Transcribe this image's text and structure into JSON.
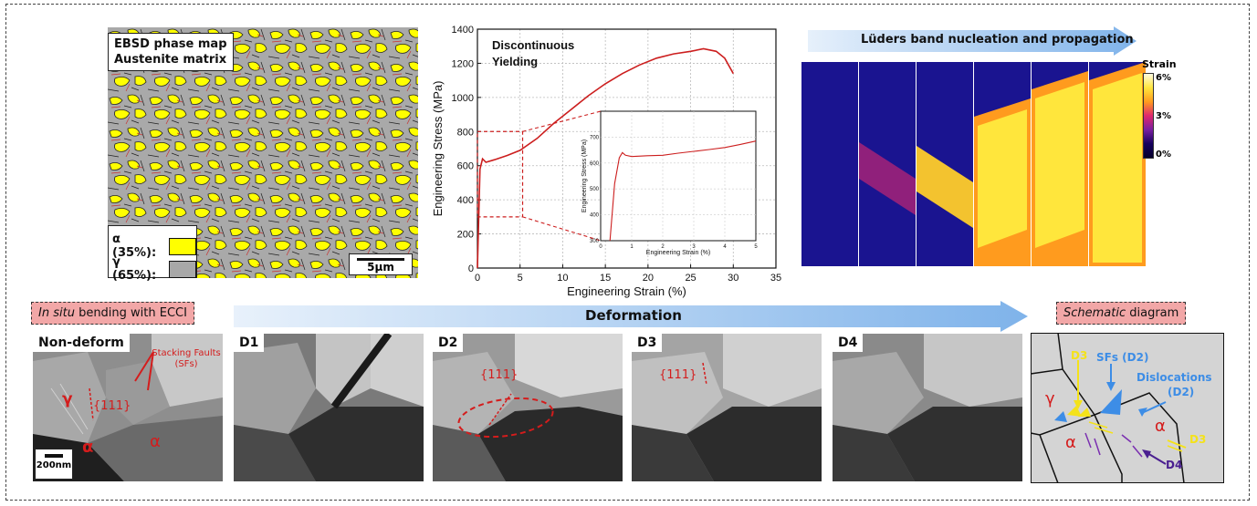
{
  "ebsd": {
    "title_line1": "EBSD phase map",
    "title_line2": "Austenite matrix",
    "legend": [
      {
        "label": "α (35%):",
        "color": "#ffff00"
      },
      {
        "label": "γ (65%):",
        "color": "#a8a8a8"
      }
    ],
    "scale_bar": "5μm"
  },
  "chart_data": [
    {
      "type": "line",
      "title": "Discontinuous Yielding",
      "xlabel": "Engineering Strain (%)",
      "ylabel": "Engineering Stress (MPa)",
      "xlim": [
        0,
        35
      ],
      "ylim": [
        0,
        1400
      ],
      "xticks": [
        0,
        5,
        10,
        15,
        20,
        25,
        30,
        35
      ],
      "yticks": [
        0,
        200,
        400,
        600,
        800,
        1000,
        1200,
        1400
      ],
      "x": [
        0,
        0.3,
        0.6,
        1.0,
        2.0,
        3.5,
        5.0,
        7.0,
        9.0,
        11.0,
        13.0,
        15.0,
        17.0,
        19.0,
        21.0,
        23.0,
        25.0,
        26.5,
        28.0,
        29.0,
        30.0
      ],
      "y": [
        0,
        580,
        640,
        620,
        635,
        660,
        690,
        760,
        850,
        930,
        1010,
        1080,
        1140,
        1190,
        1230,
        1255,
        1270,
        1285,
        1270,
        1230,
        1140
      ],
      "color": "#cc1e1e",
      "zoom_region": {
        "x": [
          0,
          5.3
        ],
        "y": [
          300,
          800
        ]
      }
    },
    {
      "type": "line",
      "title": "",
      "xlabel": "Engineering Strain (%)",
      "ylabel": "Engineering Stress (MPa)",
      "xlim": [
        0,
        5
      ],
      "ylim": [
        300,
        800
      ],
      "xticks": [
        0,
        1,
        2,
        3,
        4,
        5
      ],
      "yticks": [
        300,
        400,
        500,
        600,
        700
      ],
      "x": [
        0.3,
        0.45,
        0.6,
        0.7,
        0.8,
        1.0,
        1.5,
        2.0,
        2.5,
        3.0,
        3.5,
        4.0,
        4.5,
        5.0
      ],
      "y": [
        300,
        520,
        620,
        640,
        630,
        625,
        628,
        630,
        638,
        645,
        652,
        660,
        672,
        685
      ],
      "color": "#cc1e1e"
    }
  ],
  "dic": {
    "title": "Lüders band nucleation and propagation",
    "colorbar_label": "Strain",
    "colorbar_ticks": [
      "6%",
      "3%",
      "0%"
    ]
  },
  "ecci": {
    "tag_left_italic": "In situ",
    "tag_left_rest": " bending with ECCI",
    "deformation": "Deformation",
    "tag_right_italic": "Schematic",
    "tag_right_rest": " diagram",
    "panels": [
      "Non-deform",
      "D1",
      "D2",
      "D3",
      "D4"
    ],
    "annotations": {
      "stacking_faults": "Stacking Faults (SFs)",
      "plane": "{111}",
      "gamma": "γ",
      "alpha": "α",
      "scale": "200nm"
    }
  },
  "schematic": {
    "d3_top": "D3",
    "sfs": "SFs (D2)",
    "dislocations": "Dislocations",
    "dislocations_d2": "(D2)",
    "gamma": "γ",
    "alpha_left": "α",
    "alpha_right": "α",
    "d3_right": "D3",
    "d4": "D4"
  }
}
